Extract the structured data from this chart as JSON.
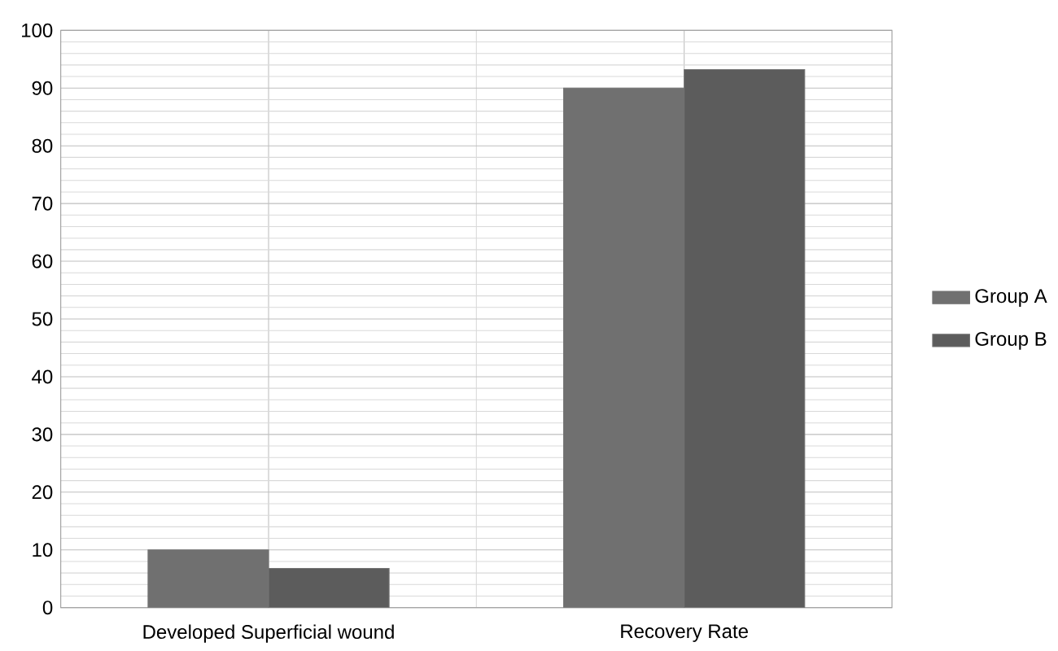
{
  "chart_data": {
    "type": "bar",
    "categories": [
      "Developed Superficial wound",
      "Recovery Rate"
    ],
    "series": [
      {
        "name": "Group A",
        "color": "#707070",
        "values": [
          10,
          90
        ]
      },
      {
        "name": "Group B",
        "color": "#5c5c5c",
        "values": [
          6.8,
          93.2
        ]
      }
    ],
    "ylim": [
      0,
      100
    ],
    "yticks": [
      0,
      10,
      20,
      30,
      40,
      50,
      60,
      70,
      80,
      90,
      100
    ],
    "grid": true,
    "legend": "right"
  }
}
